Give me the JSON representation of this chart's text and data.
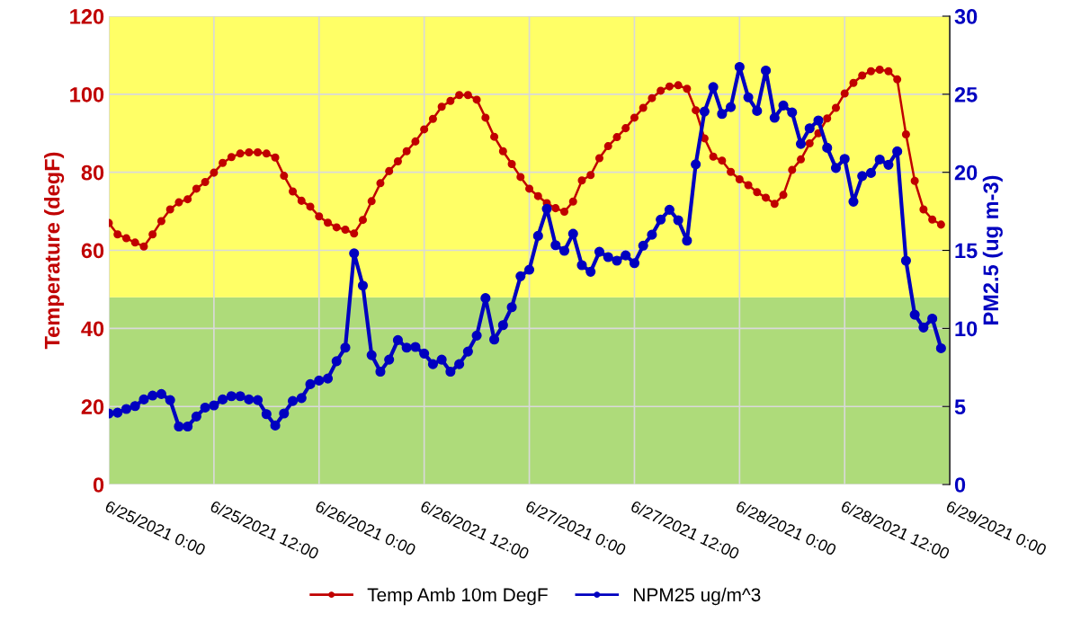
{
  "chart_data": {
    "type": "line",
    "xlabel": null,
    "ylabel": "Temperature (degF)",
    "y2label": "PM2.5 (ug m-3)",
    "x": [
      "2021-06-25T00:00",
      "2021-06-25T01:00",
      "2021-06-25T02:00",
      "2021-06-25T03:00",
      "2021-06-25T04:00",
      "2021-06-25T05:00",
      "2021-06-25T06:00",
      "2021-06-25T07:00",
      "2021-06-25T08:00",
      "2021-06-25T09:00",
      "2021-06-25T10:00",
      "2021-06-25T11:00",
      "2021-06-25T12:00",
      "2021-06-25T13:00",
      "2021-06-25T14:00",
      "2021-06-25T15:00",
      "2021-06-25T16:00",
      "2021-06-25T17:00",
      "2021-06-25T18:00",
      "2021-06-25T19:00",
      "2021-06-25T20:00",
      "2021-06-25T21:00",
      "2021-06-25T22:00",
      "2021-06-25T23:00",
      "2021-06-26T00:00",
      "2021-06-26T01:00",
      "2021-06-26T02:00",
      "2021-06-26T03:00",
      "2021-06-26T04:00",
      "2021-06-26T05:00",
      "2021-06-26T06:00",
      "2021-06-26T07:00",
      "2021-06-26T08:00",
      "2021-06-26T09:00",
      "2021-06-26T10:00",
      "2021-06-26T11:00",
      "2021-06-26T12:00",
      "2021-06-26T13:00",
      "2021-06-26T14:00",
      "2021-06-26T15:00",
      "2021-06-26T16:00",
      "2021-06-26T17:00",
      "2021-06-26T18:00",
      "2021-06-26T19:00",
      "2021-06-26T20:00",
      "2021-06-26T21:00",
      "2021-06-26T22:00",
      "2021-06-26T23:00",
      "2021-06-27T00:00",
      "2021-06-27T01:00",
      "2021-06-27T02:00",
      "2021-06-27T03:00",
      "2021-06-27T04:00",
      "2021-06-27T05:00",
      "2021-06-27T06:00",
      "2021-06-27T07:00",
      "2021-06-27T08:00",
      "2021-06-27T09:00",
      "2021-06-27T10:00",
      "2021-06-27T11:00",
      "2021-06-27T12:00",
      "2021-06-27T13:00",
      "2021-06-27T14:00",
      "2021-06-27T15:00",
      "2021-06-27T16:00",
      "2021-06-27T17:00",
      "2021-06-27T18:00",
      "2021-06-27T19:00",
      "2021-06-27T20:00",
      "2021-06-27T21:00",
      "2021-06-27T22:00",
      "2021-06-27T23:00",
      "2021-06-28T00:00",
      "2021-06-28T01:00",
      "2021-06-28T02:00",
      "2021-06-28T03:00",
      "2021-06-28T04:00",
      "2021-06-28T05:00",
      "2021-06-28T06:00",
      "2021-06-28T07:00",
      "2021-06-28T08:00",
      "2021-06-28T09:00",
      "2021-06-28T10:00",
      "2021-06-28T11:00",
      "2021-06-28T12:00",
      "2021-06-28T13:00",
      "2021-06-28T14:00",
      "2021-06-28T15:00",
      "2021-06-28T16:00",
      "2021-06-28T17:00",
      "2021-06-28T18:00",
      "2021-06-28T19:00",
      "2021-06-28T20:00",
      "2021-06-28T21:00",
      "2021-06-28T22:00",
      "2021-06-28T23:00"
    ],
    "xlim": [
      "2021-06-25T00:00",
      "2021-06-29T00:00"
    ],
    "xticks": [
      {
        "value": "2021-06-25T00:00",
        "label": "6/25/2021 0:00"
      },
      {
        "value": "2021-06-25T12:00",
        "label": "6/25/2021 12:00"
      },
      {
        "value": "2021-06-26T00:00",
        "label": "6/26/2021 0:00"
      },
      {
        "value": "2021-06-26T12:00",
        "label": "6/26/2021 12:00"
      },
      {
        "value": "2021-06-27T00:00",
        "label": "6/27/2021 0:00"
      },
      {
        "value": "2021-06-27T12:00",
        "label": "6/27/2021 12:00"
      },
      {
        "value": "2021-06-28T00:00",
        "label": "6/28/2021 0:00"
      },
      {
        "value": "2021-06-28T12:00",
        "label": "6/28/2021 12:00"
      },
      {
        "value": "2021-06-29T00:00",
        "label": "6/29/2021 0:00"
      }
    ],
    "ylim": [
      0,
      120
    ],
    "yticks": [
      0,
      20,
      40,
      60,
      80,
      100,
      120
    ],
    "y2lim": [
      0,
      30
    ],
    "y2ticks": [
      0,
      5,
      10,
      15,
      20,
      25,
      30
    ],
    "series": [
      {
        "name": "Temp Amb 10m DegF",
        "color": "#c00000",
        "values": [
          67,
          64.1,
          63.1,
          62,
          61,
          64.1,
          67.5,
          70.5,
          72.3,
          73.1,
          75.8,
          77.5,
          79.9,
          82.4,
          83.9,
          84.8,
          85.1,
          85.1,
          84.8,
          83.8,
          79.1,
          75.1,
          72.7,
          71.2,
          68.7,
          67.1,
          65.9,
          65.3,
          64.3,
          67.8,
          72.6,
          77.2,
          80.3,
          82.8,
          85.4,
          87.9,
          91,
          93.7,
          96.8,
          98.3,
          99.8,
          99.8,
          98.6,
          94,
          89.1,
          85.4,
          82.1,
          78.8,
          75.8,
          73.9,
          72.1,
          70.8,
          69.9,
          72.5,
          77.9,
          79.3,
          83.6,
          86.7,
          89,
          91.3,
          94,
          96.5,
          99,
          100.9,
          102,
          102.3,
          101.4,
          95.9,
          88.7,
          84,
          83,
          80.1,
          78.2,
          76.7,
          74.9,
          73.5,
          71.9,
          74.2,
          80.6,
          83.3,
          87.4,
          90,
          93.8,
          96.5,
          100.2,
          102.9,
          104.8,
          105.9,
          106.3,
          105.9,
          103.8,
          89.7,
          77.8,
          70.5,
          67.9,
          66.6
        ]
      },
      {
        "name": "NPM25 ug/m^3",
        "color": "#0000c0",
        "axis": "y2",
        "values": [
          4.55,
          4.6,
          4.84,
          5.03,
          5.45,
          5.7,
          5.8,
          5.41,
          3.72,
          3.72,
          4.36,
          4.93,
          5.07,
          5.45,
          5.66,
          5.66,
          5.45,
          5.41,
          4.51,
          3.78,
          4.55,
          5.35,
          5.54,
          6.43,
          6.66,
          6.79,
          7.9,
          8.77,
          14.81,
          12.74,
          8.29,
          7.23,
          8,
          9.25,
          8.77,
          8.81,
          8.39,
          7.71,
          8,
          7.23,
          7.71,
          8.52,
          9.54,
          11.94,
          9.29,
          10.21,
          11.36,
          13.34,
          13.76,
          15.93,
          17.66,
          15.33,
          14.97,
          16.06,
          14.05,
          13.63,
          14.91,
          14.57,
          14.34,
          14.68,
          14.18,
          15.3,
          16,
          16.97,
          17.6,
          16.93,
          15.62,
          20.51,
          23.89,
          25.46,
          23.74,
          24.18,
          26.75,
          24.8,
          23.93,
          26.52,
          23.49,
          24.28,
          23.83,
          21.82,
          22.82,
          23.32,
          21.57,
          20.28,
          20.86,
          18.12,
          19.76,
          19.96,
          20.82,
          20.48,
          21.34,
          14.34,
          10.88,
          10.06,
          10.63,
          8.73
        ]
      }
    ],
    "bands": [
      {
        "axis": "y2",
        "from": 0,
        "to": 12,
        "color": "#aedb7a"
      },
      {
        "axis": "y2",
        "from": 12,
        "to": 30,
        "color": "#ffff66"
      }
    ],
    "marker": "circle",
    "line_style": "solid",
    "grid": true,
    "legend": "bottom"
  }
}
